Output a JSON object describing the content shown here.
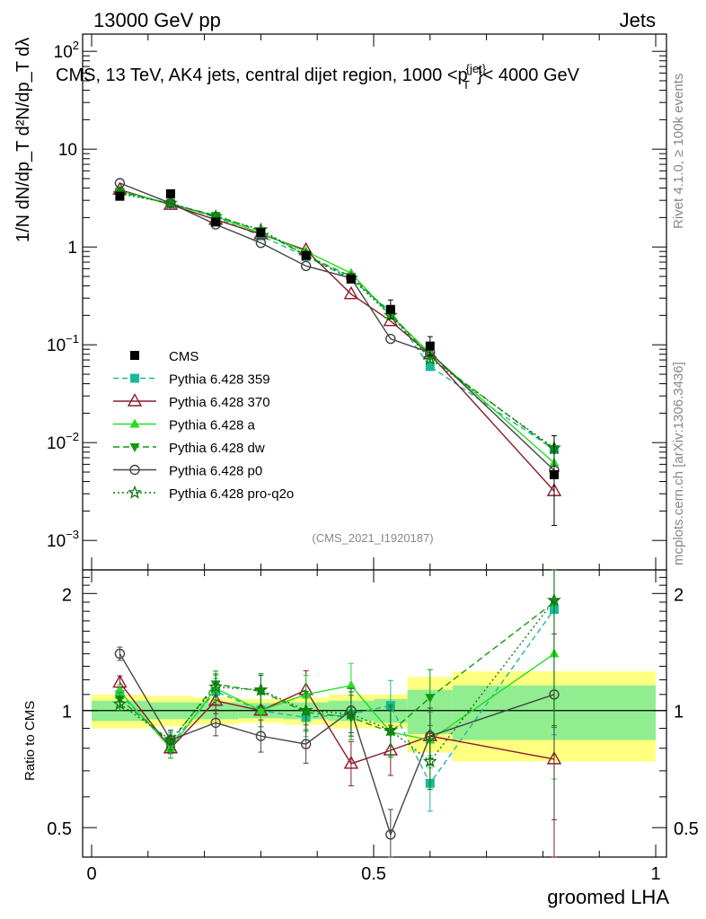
{
  "header": {
    "left": "13000 GeV pp",
    "right": "Jets",
    "subtitle": "CMS, 13 TeV, AK4 jets, central dijet region, 1000 <p",
    "subtitle_super": "{jet}",
    "subtitle_sub": "T",
    "subtitle_end": "}< 4000 GeV",
    "watermark": "(CMS_2021_I1920187)",
    "side_rivet": "Rivet 4.1.0, ≥ 100k events",
    "side_mcplots": "mcplots.cern.ch [arXiv:1306.3436]"
  },
  "axes": {
    "ylabel_main": "1/N dN/dp_T  d²N/dp_T dλ",
    "ylabel_ratio": "Ratio to CMS",
    "xlabel": "groomed LHA",
    "x_ticks": [
      "0",
      "0.5",
      "1"
    ],
    "y_main_ticks": [
      "10",
      "1"
    ],
    "y_main_exp_ticks": [
      {
        "base": "10",
        "exp": "2"
      },
      {
        "base": "10",
        "exp": "−1"
      },
      {
        "base": "10",
        "exp": "−2"
      },
      {
        "base": "10",
        "exp": "−3"
      }
    ],
    "y_ratio_ticks": [
      "2",
      "1",
      "0.5",
      "2",
      "1",
      "0.5"
    ]
  },
  "chart_data": {
    "type": "scatter",
    "xlim": [
      0,
      1
    ],
    "ylim_main": [
      0.0005,
      150
    ],
    "ylim_ratio": [
      0.42,
      2.3
    ],
    "x": [
      0.05,
      0.14,
      0.22,
      0.3,
      0.38,
      0.46,
      0.53,
      0.6,
      0.82
    ],
    "bin_edges": [
      0.0,
      0.1,
      0.18,
      0.26,
      0.34,
      0.42,
      0.5,
      0.56,
      0.64,
      1.0
    ],
    "data": {
      "name": "CMS",
      "values": [
        3.3,
        3.5,
        1.8,
        1.4,
        0.82,
        0.47,
        0.23,
        0.097,
        0.0047
      ],
      "color": "#000000"
    },
    "series": [
      {
        "name": "Pythia 6.428 359",
        "color": "#1bb89a",
        "dash": "6,4",
        "marker": "square",
        "values": [
          3.6,
          2.8,
          2.0,
          1.3,
          0.8,
          0.47,
          0.22,
          0.06,
          0.0085
        ],
        "ratio": [
          1.1,
          0.82,
          1.12,
          1.0,
          0.96,
          0.98,
          1.03,
          0.65,
          1.82
        ]
      },
      {
        "name": "Pythia 6.428 370",
        "color": "#8b1a2b",
        "dash": "",
        "marker": "triangle-open",
        "values": [
          3.85,
          2.7,
          1.9,
          1.35,
          0.93,
          0.33,
          0.175,
          0.08,
          0.0032
        ],
        "ratio": [
          1.18,
          0.8,
          1.06,
          1.0,
          1.13,
          0.73,
          0.79,
          0.86,
          0.75
        ]
      },
      {
        "name": "Pythia 6.428 a",
        "color": "#22dd22",
        "dash": "",
        "marker": "triangle",
        "values": [
          3.75,
          2.75,
          2.05,
          1.38,
          0.9,
          0.54,
          0.2,
          0.082,
          0.0062
        ],
        "ratio": [
          1.12,
          0.8,
          1.14,
          1.0,
          1.1,
          1.16,
          0.88,
          0.84,
          1.4
        ]
      },
      {
        "name": "Pythia 6.428 dw",
        "color": "#119911",
        "dash": "7,4",
        "marker": "triangle-down",
        "values": [
          3.7,
          2.75,
          2.1,
          1.45,
          0.82,
          0.5,
          0.21,
          0.075,
          0.0085
        ],
        "ratio": [
          1.07,
          0.83,
          1.17,
          1.12,
          0.99,
          0.96,
          0.88,
          1.08,
          1.9
        ]
      },
      {
        "name": "Pythia 6.428 p0",
        "color": "#444444",
        "dash": "",
        "marker": "circle-open",
        "values": [
          4.5,
          2.8,
          1.7,
          1.1,
          0.64,
          0.48,
          0.115,
          0.083,
          0.0052
        ],
        "ratio": [
          1.4,
          0.84,
          0.93,
          0.86,
          0.82,
          1.0,
          0.48,
          0.86,
          1.1
        ]
      },
      {
        "name": "Pythia 6.428 pro-q2o",
        "color": "#117711",
        "dash": "2,3",
        "marker": "star",
        "values": [
          3.5,
          2.8,
          2.05,
          1.5,
          0.82,
          0.48,
          0.2,
          0.072,
          0.0088
        ],
        "ratio": [
          1.04,
          0.84,
          1.15,
          1.13,
          1.0,
          0.98,
          0.89,
          0.74,
          1.92
        ]
      }
    ],
    "band_yellow_half": [
      0.1,
      0.09,
      0.08,
      0.07,
      0.08,
      0.1,
      0.1,
      0.22,
      0.26
    ],
    "band_green_half": [
      0.06,
      0.05,
      0.05,
      0.045,
      0.05,
      0.06,
      0.07,
      0.13,
      0.16
    ]
  }
}
